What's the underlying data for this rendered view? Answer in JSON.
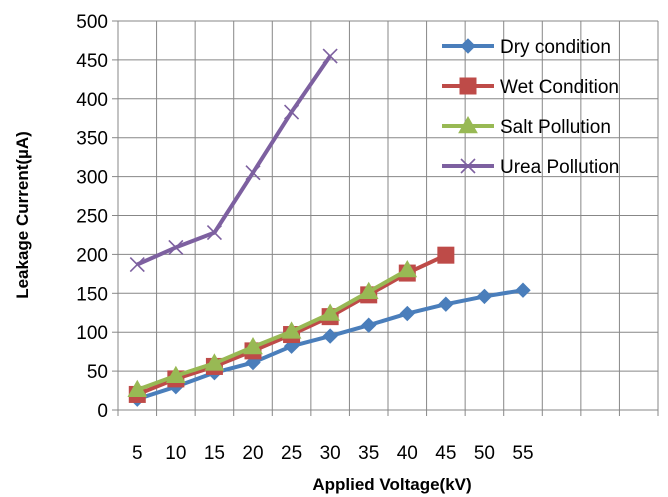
{
  "chart_data": {
    "type": "line",
    "title": "",
    "xlabel": "Applied Voltage(kV)",
    "ylabel": "Leakage Current(µA)",
    "ylim": [
      0,
      500
    ],
    "yticks": [
      "0",
      "50",
      "100",
      "150",
      "200",
      "250",
      "300",
      "350",
      "400",
      "450",
      "500"
    ],
    "categories": [
      "5",
      "10",
      "15",
      "20",
      "25",
      "30",
      "35",
      "40",
      "45",
      "50",
      "55",
      "",
      "",
      ""
    ],
    "grid": "horizontal and vertical",
    "legend_position": "top-right",
    "series": [
      {
        "name": "Dry condition",
        "color": "#4a7ebb",
        "marker": "diamond",
        "x": [
          "5",
          "10",
          "15",
          "20",
          "25",
          "30",
          "35",
          "40",
          "45",
          "50",
          "55"
        ],
        "values": [
          14,
          30,
          48,
          61,
          82,
          95,
          109,
          124,
          136,
          146,
          154
        ]
      },
      {
        "name": "Wet Condition",
        "color": "#be4b48",
        "marker": "square",
        "x": [
          "5",
          "10",
          "15",
          "20",
          "25",
          "30",
          "35",
          "40",
          "45"
        ],
        "values": [
          20,
          40,
          56,
          76,
          97,
          120,
          148,
          176,
          199
        ]
      },
      {
        "name": "Salt Pollution",
        "color": "#98b954",
        "marker": "triangle",
        "x": [
          "5",
          "10",
          "15",
          "20",
          "25",
          "30",
          "35",
          "40"
        ],
        "values": [
          26,
          44,
          60,
          81,
          101,
          124,
          152,
          180
        ]
      },
      {
        "name": "Urea Pollution",
        "color": "#7d60a0",
        "marker": "cross",
        "x": [
          "5",
          "10",
          "15",
          "20",
          "25",
          "30"
        ],
        "values": [
          187,
          209,
          228,
          305,
          383,
          455
        ]
      }
    ]
  }
}
